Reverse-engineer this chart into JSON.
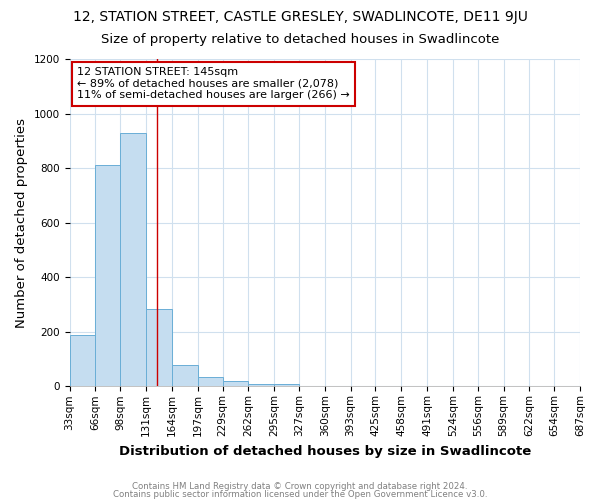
{
  "title": "12, STATION STREET, CASTLE GRESLEY, SWADLINCOTE, DE11 9JU",
  "subtitle": "Size of property relative to detached houses in Swadlincote",
  "xlabel": "Distribution of detached houses by size in Swadlincote",
  "ylabel": "Number of detached properties",
  "footnote1": "Contains HM Land Registry data © Crown copyright and database right 2024.",
  "footnote2": "Contains public sector information licensed under the Open Government Licence v3.0.",
  "bar_edges": [
    33,
    66,
    98,
    131,
    164,
    197,
    229,
    262,
    295,
    327,
    360,
    393,
    425,
    458,
    491,
    524,
    556,
    589,
    622,
    654,
    687
  ],
  "bar_heights": [
    190,
    810,
    930,
    285,
    80,
    35,
    20,
    10,
    10,
    0,
    0,
    0,
    0,
    0,
    0,
    0,
    0,
    0,
    0,
    0
  ],
  "bar_color": "#c5ddf0",
  "bar_edge_color": "#6aaed6",
  "grid_color": "#d0e0ee",
  "red_line_x": 145,
  "red_line_color": "#cc0000",
  "annotation_line1": "12 STATION STREET: 145sqm",
  "annotation_line2": "← 89% of detached houses are smaller (2,078)",
  "annotation_line3": "11% of semi-detached houses are larger (266) →",
  "annotation_box_color": "white",
  "annotation_box_edge": "#cc0000",
  "ylim": [
    0,
    1200
  ],
  "yticks": [
    0,
    200,
    400,
    600,
    800,
    1000,
    1200
  ],
  "bg_color": "white",
  "title_fontsize": 10,
  "subtitle_fontsize": 9.5,
  "axis_label_fontsize": 9.5,
  "tick_fontsize": 7.5,
  "footnote_fontsize": 6.2,
  "annotation_fontsize": 8
}
